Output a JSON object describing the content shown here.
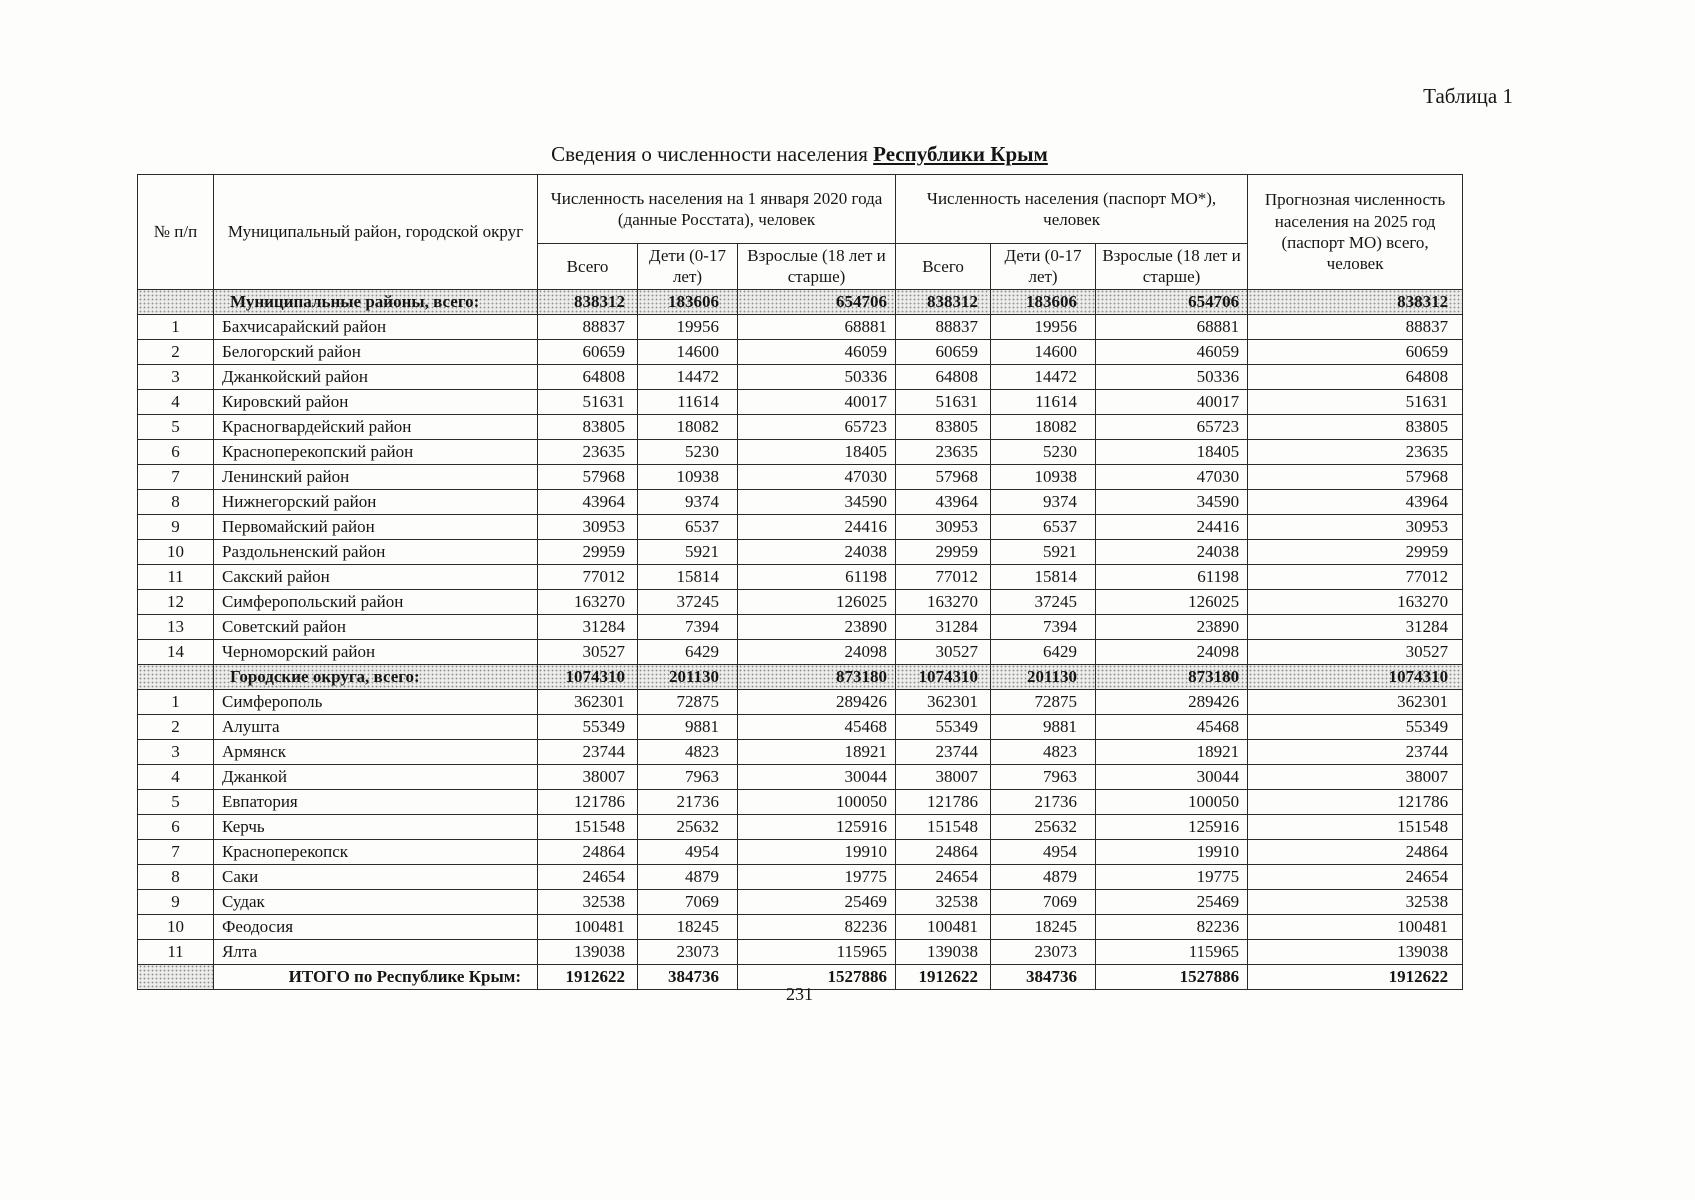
{
  "page": {
    "table_label": "Таблица 1",
    "title_prefix": "Сведения о численности населения ",
    "title_bold": "Республики Крым",
    "page_number": "231"
  },
  "table": {
    "headers": {
      "num": "№ п/п",
      "municipality": "Муниципальный район, городской округ",
      "group_rosstat": "Численность населения на 1 января 2020 года (данные Росстата), человек",
      "group_passport": "Численность населения (паспорт МО*), человек",
      "forecast": "Прогнозная численность населения на 2025 год (паспорт МО) всего, человек",
      "sub_total": "Всего",
      "sub_children": "Дети (0-17 лет)",
      "sub_adults": "Взрослые (18 лет и старше)"
    },
    "rows": [
      {
        "type": "section",
        "num": "",
        "name": "Муниципальные районы, всего:",
        "values": [
          "838312",
          "183606",
          "654706",
          "838312",
          "183606",
          "654706",
          "838312"
        ]
      },
      {
        "type": "data",
        "num": "1",
        "name": "Бахчисарайский район",
        "values": [
          "88837",
          "19956",
          "68881",
          "88837",
          "19956",
          "68881",
          "88837"
        ]
      },
      {
        "type": "data",
        "num": "2",
        "name": "Белогорский район",
        "values": [
          "60659",
          "14600",
          "46059",
          "60659",
          "14600",
          "46059",
          "60659"
        ]
      },
      {
        "type": "data",
        "num": "3",
        "name": "Джанкойский район",
        "values": [
          "64808",
          "14472",
          "50336",
          "64808",
          "14472",
          "50336",
          "64808"
        ]
      },
      {
        "type": "data",
        "num": "4",
        "name": "Кировский район",
        "values": [
          "51631",
          "11614",
          "40017",
          "51631",
          "11614",
          "40017",
          "51631"
        ]
      },
      {
        "type": "data",
        "num": "5",
        "name": "Красногвардейский район",
        "values": [
          "83805",
          "18082",
          "65723",
          "83805",
          "18082",
          "65723",
          "83805"
        ]
      },
      {
        "type": "data",
        "num": "6",
        "name": "Красноперекопский район",
        "values": [
          "23635",
          "5230",
          "18405",
          "23635",
          "5230",
          "18405",
          "23635"
        ]
      },
      {
        "type": "data",
        "num": "7",
        "name": "Ленинский район",
        "values": [
          "57968",
          "10938",
          "47030",
          "57968",
          "10938",
          "47030",
          "57968"
        ]
      },
      {
        "type": "data",
        "num": "8",
        "name": "Нижнегорский район",
        "values": [
          "43964",
          "9374",
          "34590",
          "43964",
          "9374",
          "34590",
          "43964"
        ]
      },
      {
        "type": "data",
        "num": "9",
        "name": "Первомайский район",
        "values": [
          "30953",
          "6537",
          "24416",
          "30953",
          "6537",
          "24416",
          "30953"
        ]
      },
      {
        "type": "data",
        "num": "10",
        "name": "Раздольненский район",
        "values": [
          "29959",
          "5921",
          "24038",
          "29959",
          "5921",
          "24038",
          "29959"
        ]
      },
      {
        "type": "data",
        "num": "11",
        "name": "Сакский район",
        "values": [
          "77012",
          "15814",
          "61198",
          "77012",
          "15814",
          "61198",
          "77012"
        ]
      },
      {
        "type": "data",
        "num": "12",
        "name": "Симферопольский район",
        "values": [
          "163270",
          "37245",
          "126025",
          "163270",
          "37245",
          "126025",
          "163270"
        ]
      },
      {
        "type": "data",
        "num": "13",
        "name": "Советский район",
        "values": [
          "31284",
          "7394",
          "23890",
          "31284",
          "7394",
          "23890",
          "31284"
        ]
      },
      {
        "type": "data",
        "num": "14",
        "name": "Черноморский район",
        "values": [
          "30527",
          "6429",
          "24098",
          "30527",
          "6429",
          "24098",
          "30527"
        ]
      },
      {
        "type": "section",
        "num": "",
        "name": "Городские округа, всего:",
        "values": [
          "1074310",
          "201130",
          "873180",
          "1074310",
          "201130",
          "873180",
          "1074310"
        ]
      },
      {
        "type": "data",
        "num": "1",
        "name": "Симферополь",
        "values": [
          "362301",
          "72875",
          "289426",
          "362301",
          "72875",
          "289426",
          "362301"
        ]
      },
      {
        "type": "data",
        "num": "2",
        "name": "Алушта",
        "values": [
          "55349",
          "9881",
          "45468",
          "55349",
          "9881",
          "45468",
          "55349"
        ]
      },
      {
        "type": "data",
        "num": "3",
        "name": "Армянск",
        "values": [
          "23744",
          "4823",
          "18921",
          "23744",
          "4823",
          "18921",
          "23744"
        ]
      },
      {
        "type": "data",
        "num": "4",
        "name": "Джанкой",
        "values": [
          "38007",
          "7963",
          "30044",
          "38007",
          "7963",
          "30044",
          "38007"
        ]
      },
      {
        "type": "data",
        "num": "5",
        "name": "Евпатория",
        "values": [
          "121786",
          "21736",
          "100050",
          "121786",
          "21736",
          "100050",
          "121786"
        ]
      },
      {
        "type": "data",
        "num": "6",
        "name": "Керчь",
        "values": [
          "151548",
          "25632",
          "125916",
          "151548",
          "25632",
          "125916",
          "151548"
        ]
      },
      {
        "type": "data",
        "num": "7",
        "name": "Красноперекопск",
        "values": [
          "24864",
          "4954",
          "19910",
          "24864",
          "4954",
          "19910",
          "24864"
        ]
      },
      {
        "type": "data",
        "num": "8",
        "name": "Саки",
        "values": [
          "24654",
          "4879",
          "19775",
          "24654",
          "4879",
          "19775",
          "24654"
        ]
      },
      {
        "type": "data",
        "num": "9",
        "name": "Судак",
        "values": [
          "32538",
          "7069",
          "25469",
          "32538",
          "7069",
          "25469",
          "32538"
        ]
      },
      {
        "type": "data",
        "num": "10",
        "name": "Феодосия",
        "values": [
          "100481",
          "18245",
          "82236",
          "100481",
          "18245",
          "82236",
          "100481"
        ]
      },
      {
        "type": "data",
        "num": "11",
        "name": "Ялта",
        "values": [
          "139038",
          "23073",
          "115965",
          "139038",
          "23073",
          "115965",
          "139038"
        ]
      },
      {
        "type": "total",
        "num": "",
        "name": "ИТОГО по Республике Крым:",
        "values": [
          "1912622",
          "384736",
          "1527886",
          "1912622",
          "384736",
          "1527886",
          "1912622"
        ]
      }
    ]
  }
}
